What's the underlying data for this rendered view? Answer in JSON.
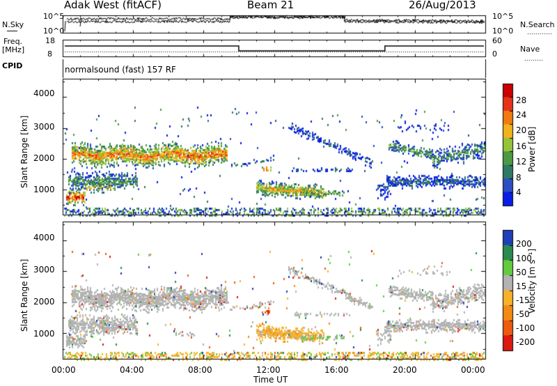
{
  "header": {
    "title": "Adak West (fitACF)",
    "beam": "Beam 21",
    "date": "26/Aug/2013"
  },
  "status_panels": {
    "nsky_label": "N.Sky",
    "nsky_ticks": [
      "10^5",
      "10^0"
    ],
    "nsearch_label": "N.Search",
    "nsearch_ticks": [
      "10^5",
      "10^0"
    ],
    "freq_label_1": "Freq.",
    "freq_label_2": "[MHz]",
    "freq_ticks": [
      "18",
      "8"
    ],
    "nave_label": "Nave",
    "nave_ticks": [
      "60",
      "0"
    ],
    "cpid_label": "CPID",
    "cpid_value": "normalsound (fast) 157 RF"
  },
  "chart_data": [
    {
      "type": "heatmap",
      "name": "power",
      "ylabel": "Slant Range [km]",
      "ylim": [
        180,
        4600
      ],
      "yticks": [
        1000,
        2000,
        3000,
        4000
      ],
      "xlim": [
        0,
        24
      ],
      "xticks": [
        "00:00",
        "04:00",
        "08:00",
        "12:00",
        "16:00",
        "20:00",
        "00:00"
      ],
      "colorbar_label": "Power [dB]",
      "colorbar_ticks": [
        "28",
        "24",
        "20",
        "16",
        "12",
        "8",
        "4"
      ],
      "colors": [
        "#0a1ee8",
        "#2c4fc2",
        "#2f7a63",
        "#4d9a42",
        "#95c43a",
        "#f2b21a",
        "#f27a12",
        "#e8321a",
        "#cc0000"
      ],
      "echo_bands": [
        {
          "t": [
            0.5,
            9.3
          ],
          "range": [
            1850,
            2500
          ],
          "level": "high"
        },
        {
          "t": [
            0.3,
            4.2
          ],
          "range": [
            900,
            1600
          ],
          "level": "mid"
        },
        {
          "t": [
            0.2,
            1.2
          ],
          "range": [
            600,
            900
          ],
          "level": "high"
        },
        {
          "t": [
            11.0,
            15.0
          ],
          "range": [
            850,
            1250
          ],
          "level": "high"
        },
        {
          "t": [
            12.5,
            16.5
          ],
          "range": [
            2600,
            3200
          ],
          "level": "low"
        },
        {
          "t": [
            18.3,
            24.0
          ],
          "range": [
            1000,
            1500
          ],
          "level": "low"
        },
        {
          "t": [
            18.5,
            24.0
          ],
          "range": [
            1900,
            2600
          ],
          "level": "mid"
        }
      ]
    },
    {
      "type": "heatmap",
      "name": "velocity",
      "ylabel": "Slant Range [km]",
      "ylim": [
        180,
        4600
      ],
      "yticks": [
        1000,
        2000,
        3000,
        4000
      ],
      "xlim": [
        0,
        24
      ],
      "xlabel": "Time UT",
      "xticks": [
        "00:00",
        "04:00",
        "08:00",
        "12:00",
        "16:00",
        "20:00",
        "00:00"
      ],
      "colorbar_label": "Velocity [m s⁻¹]",
      "colorbar_ticks": [
        "200",
        "100",
        "50",
        "15",
        "-15",
        "-50",
        "-100",
        "-200"
      ],
      "colors": [
        "#1f3fb8",
        "#2a8a52",
        "#62cc3e",
        "#b3b3b3",
        "#f7b22a",
        "#f28a14",
        "#ee5a10",
        "#dd1a10"
      ]
    }
  ]
}
